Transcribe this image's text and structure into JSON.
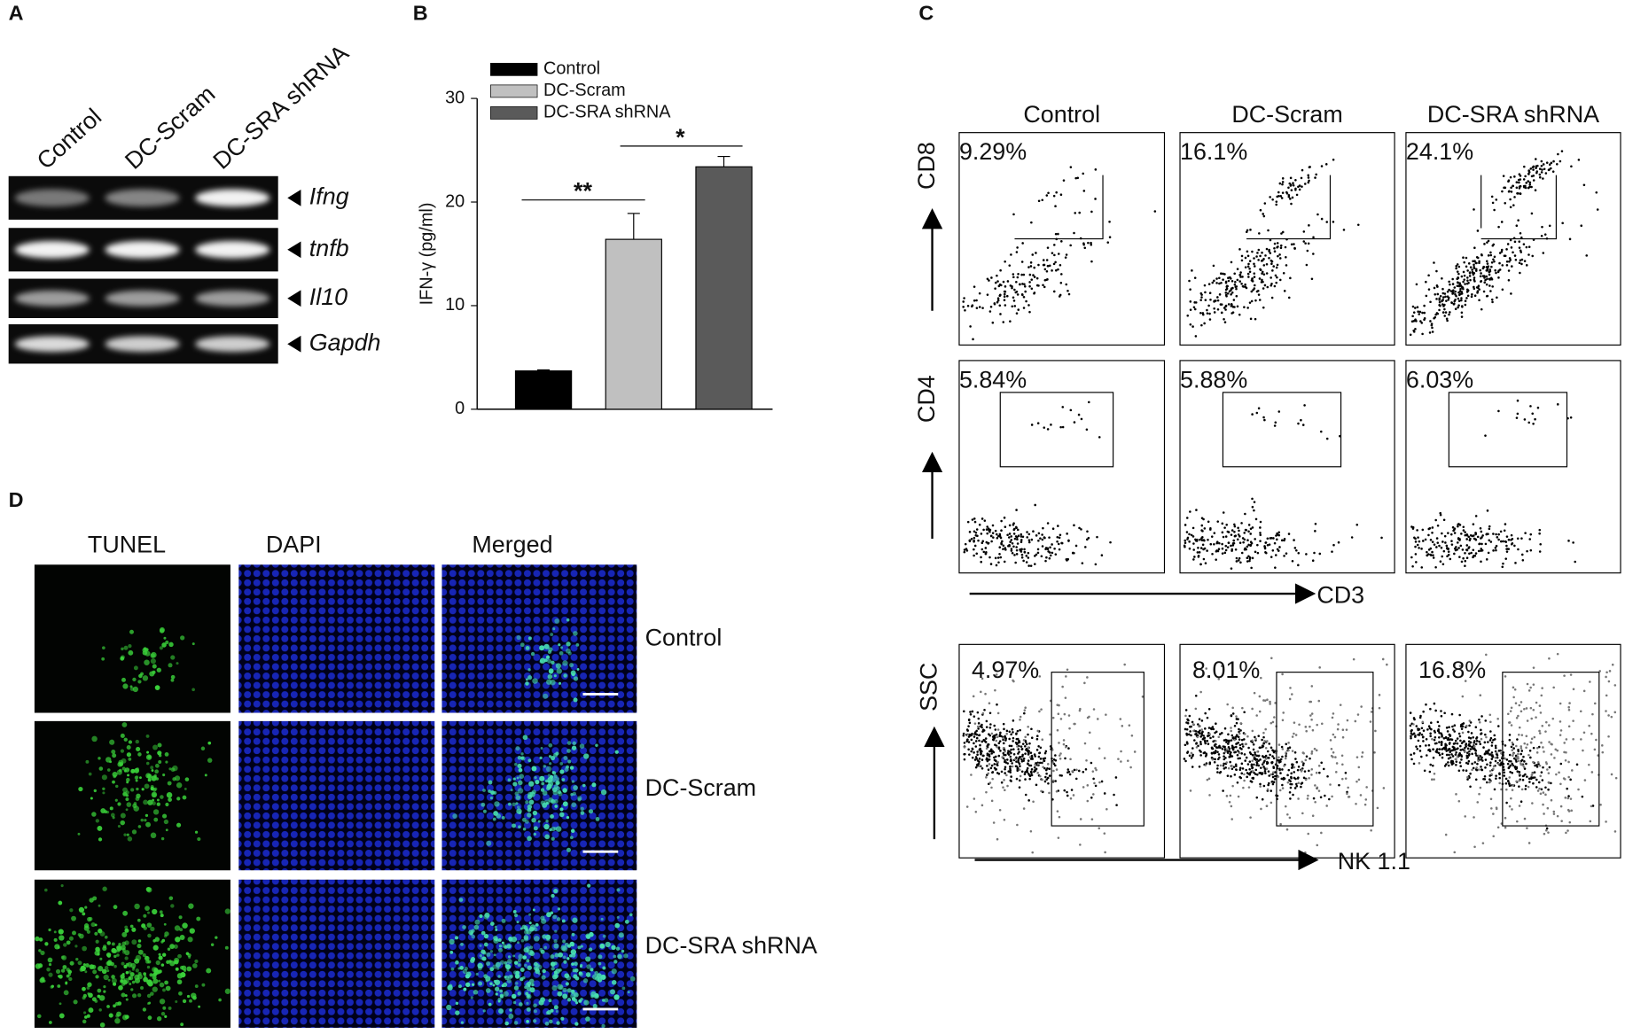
{
  "panel_labels": [
    "A",
    "B",
    "C",
    "D"
  ],
  "gel": {
    "lanes": [
      "Control",
      "DC-Scram",
      "DC-SRA shRNA"
    ],
    "genes": [
      "Ifng",
      "tnfb",
      "Il10",
      "Gapdh"
    ]
  },
  "chart_data": {
    "type": "bar",
    "ylabel": "IFN-γ (pg/ml)",
    "series": [
      {
        "name": "Control",
        "color": "#000000",
        "values": [
          3.7
        ],
        "errors": [
          0.1
        ]
      },
      {
        "name": "DC-Scram",
        "color": "#c0c0c0",
        "values": [
          16.4
        ],
        "errors": [
          2.5
        ]
      },
      {
        "name": "DC-SRA shRNA",
        "color": "#5a5a5a",
        "values": [
          23.4
        ],
        "errors": [
          1.0
        ]
      }
    ],
    "ylim": [
      0,
      30
    ],
    "yticks": [
      0,
      10,
      20,
      30
    ],
    "annotations": [
      "**",
      "*"
    ]
  },
  "flow": {
    "columns": [
      "Control",
      "DC-Scram",
      "DC-SRA shRNA"
    ],
    "rows": [
      {
        "axis": "CD8",
        "percents": [
          "9.29%",
          "16.1%",
          "24.1%"
        ]
      },
      {
        "axis": "CD4",
        "percents": [
          "5.84%",
          "5.88%",
          "6.03%"
        ]
      },
      {
        "axis": "SSC",
        "percents": [
          "4.97%",
          "8.01%",
          "16.8%"
        ]
      }
    ],
    "x_axes": [
      "CD3",
      "NK 1.1"
    ]
  },
  "tunel": {
    "columns": [
      "TUNEL",
      "DAPI",
      "Merged"
    ],
    "rows": [
      "Control",
      "DC-Scram",
      "DC-SRA shRNA"
    ]
  }
}
